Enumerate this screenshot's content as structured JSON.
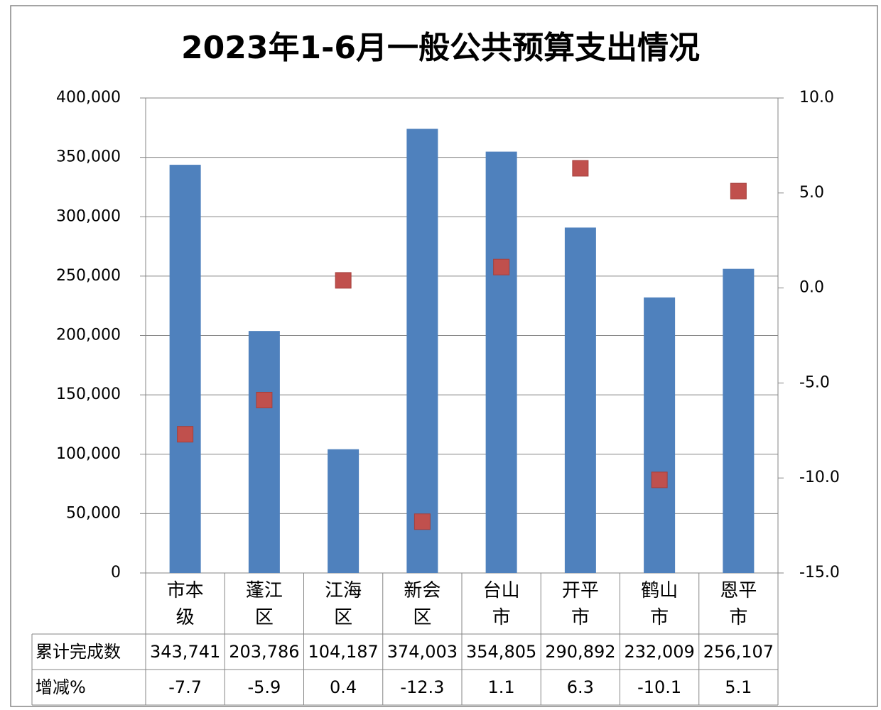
{
  "chart_data": {
    "type": "bar",
    "title": "2023年1-6月一般公共预算支出情况",
    "categories": [
      "市本级",
      "蓬江区",
      "江海区",
      "新会区",
      "台山市",
      "开平市",
      "鹤山市",
      "恩平市"
    ],
    "series": [
      {
        "name": "累计完成数",
        "color": "#4f81bd",
        "type": "bar",
        "values": [
          343741,
          203786,
          104187,
          374003,
          354805,
          290892,
          232009,
          256107
        ],
        "value_labels": [
          "343,741",
          "203,786",
          "104,187",
          "374,003",
          "354,805",
          "290,892",
          "232,009",
          "256,107"
        ]
      },
      {
        "name": "增减%",
        "color": "#c0504d",
        "type": "scatter",
        "axis": "y2",
        "values": [
          -7.7,
          -5.9,
          0.4,
          -12.3,
          1.1,
          6.3,
          -10.1,
          5.1
        ]
      }
    ],
    "ylim": [
      0,
      400000
    ],
    "yticks": [
      0,
      {
        "value": 50000,
        "label": "50,000"
      },
      {
        "value": 100000,
        "label": "100,000"
      },
      {
        "value": 150000,
        "label": "150,000"
      },
      {
        "value": 200000,
        "label": "200,000"
      },
      {
        "value": 250000,
        "label": "250,000"
      },
      {
        "value": 300000,
        "label": "300,000"
      },
      {
        "value": 350000,
        "label": "350,000"
      },
      {
        "value": 400000,
        "label": "400,000"
      }
    ],
    "y2lim": [
      -15,
      10
    ],
    "y2ticks": [
      {
        "value": -15,
        "label": "-15.0"
      },
      {
        "value": -10,
        "label": "-10.0"
      },
      {
        "value": -5,
        "label": "-5.0"
      },
      {
        "value": 0,
        "label": "0.0"
      },
      {
        "value": 5,
        "label": "5.0"
      },
      {
        "value": 10,
        "label": "10.0"
      }
    ],
    "grid": true,
    "data_table": true
  }
}
